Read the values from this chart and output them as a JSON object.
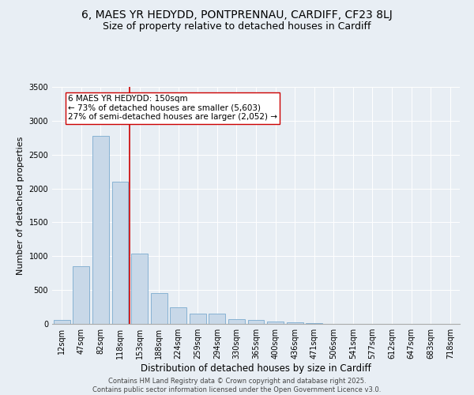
{
  "title1": "6, MAES YR HEDYDD, PONTPRENNAU, CARDIFF, CF23 8LJ",
  "title2": "Size of property relative to detached houses in Cardiff",
  "xlabel": "Distribution of detached houses by size in Cardiff",
  "ylabel": "Number of detached properties",
  "categories": [
    "12sqm",
    "47sqm",
    "82sqm",
    "118sqm",
    "153sqm",
    "188sqm",
    "224sqm",
    "259sqm",
    "294sqm",
    "330sqm",
    "365sqm",
    "400sqm",
    "436sqm",
    "471sqm",
    "506sqm",
    "541sqm",
    "577sqm",
    "612sqm",
    "647sqm",
    "683sqm",
    "718sqm"
  ],
  "values": [
    60,
    850,
    2780,
    2100,
    1040,
    460,
    250,
    155,
    155,
    75,
    60,
    40,
    20,
    15,
    5,
    3,
    2,
    1,
    1,
    0,
    0
  ],
  "bar_color": "#c8d8e8",
  "bar_edge_color": "#7aaacf",
  "vline_color": "#cc0000",
  "annotation_text": "6 MAES YR HEDYDD: 150sqm\n← 73% of detached houses are smaller (5,603)\n27% of semi-detached houses are larger (2,052) →",
  "annotation_box_color": "#ffffff",
  "annotation_box_edge": "#cc0000",
  "ylim": [
    0,
    3500
  ],
  "yticks": [
    0,
    500,
    1000,
    1500,
    2000,
    2500,
    3000,
    3500
  ],
  "background_color": "#e8eef4",
  "plot_bg_color": "#e8eef4",
  "footer_text": "Contains HM Land Registry data © Crown copyright and database right 2025.\nContains public sector information licensed under the Open Government Licence v3.0.",
  "title1_fontsize": 10,
  "title2_fontsize": 9,
  "xlabel_fontsize": 8.5,
  "ylabel_fontsize": 8,
  "tick_fontsize": 7,
  "annotation_fontsize": 7.5,
  "footer_fontsize": 6
}
